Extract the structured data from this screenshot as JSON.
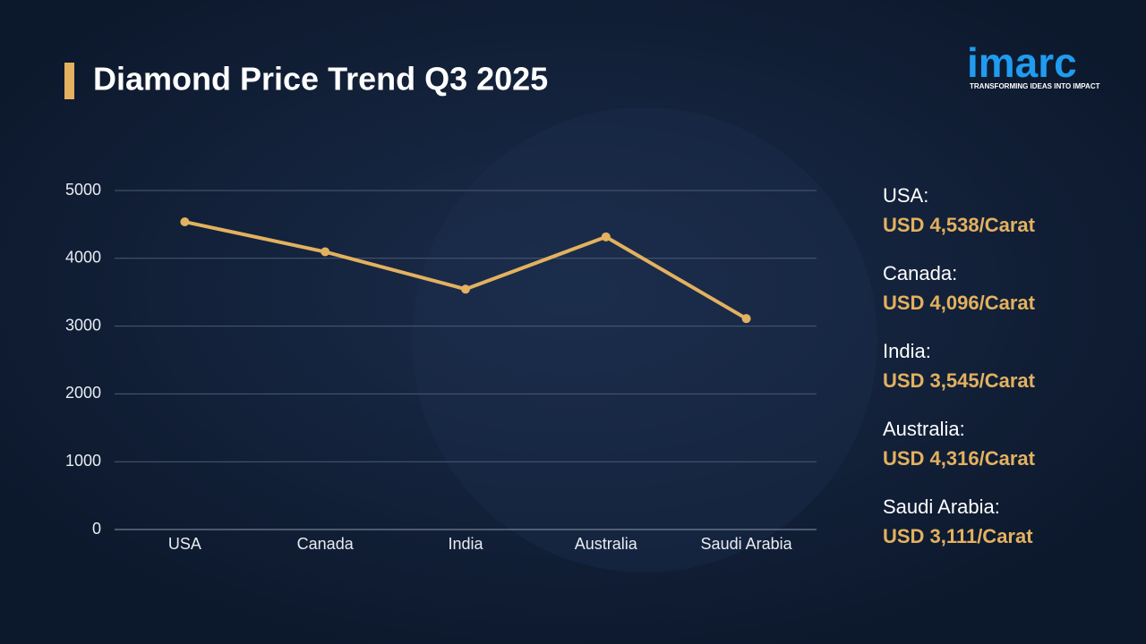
{
  "logo": {
    "name": "imarc",
    "tagline": "TRANSFORMING IDEAS INTO IMPACT"
  },
  "chart_data": {
    "type": "line",
    "title": "Diamond Price Trend Q3 2025",
    "categories": [
      "USA",
      "Canada",
      "India",
      "Australia",
      "Saudi Arabia"
    ],
    "values": [
      4538,
      4096,
      3545,
      4316,
      3111
    ],
    "side_labels": [
      "USA:",
      "Canada:",
      "India:",
      "Australia:",
      "Saudi Arabia:"
    ],
    "value_labels": [
      "USD 4,538/Carat",
      "USD 4,096/Carat",
      "USD 3,545/Carat",
      "USD 4,316/Carat",
      "USD 3,111/Carat"
    ],
    "color": "#e3b15f",
    "ylim": [
      0,
      5000
    ],
    "yticks": [
      0,
      1000,
      2000,
      3000,
      4000,
      5000
    ],
    "grid": true
  }
}
